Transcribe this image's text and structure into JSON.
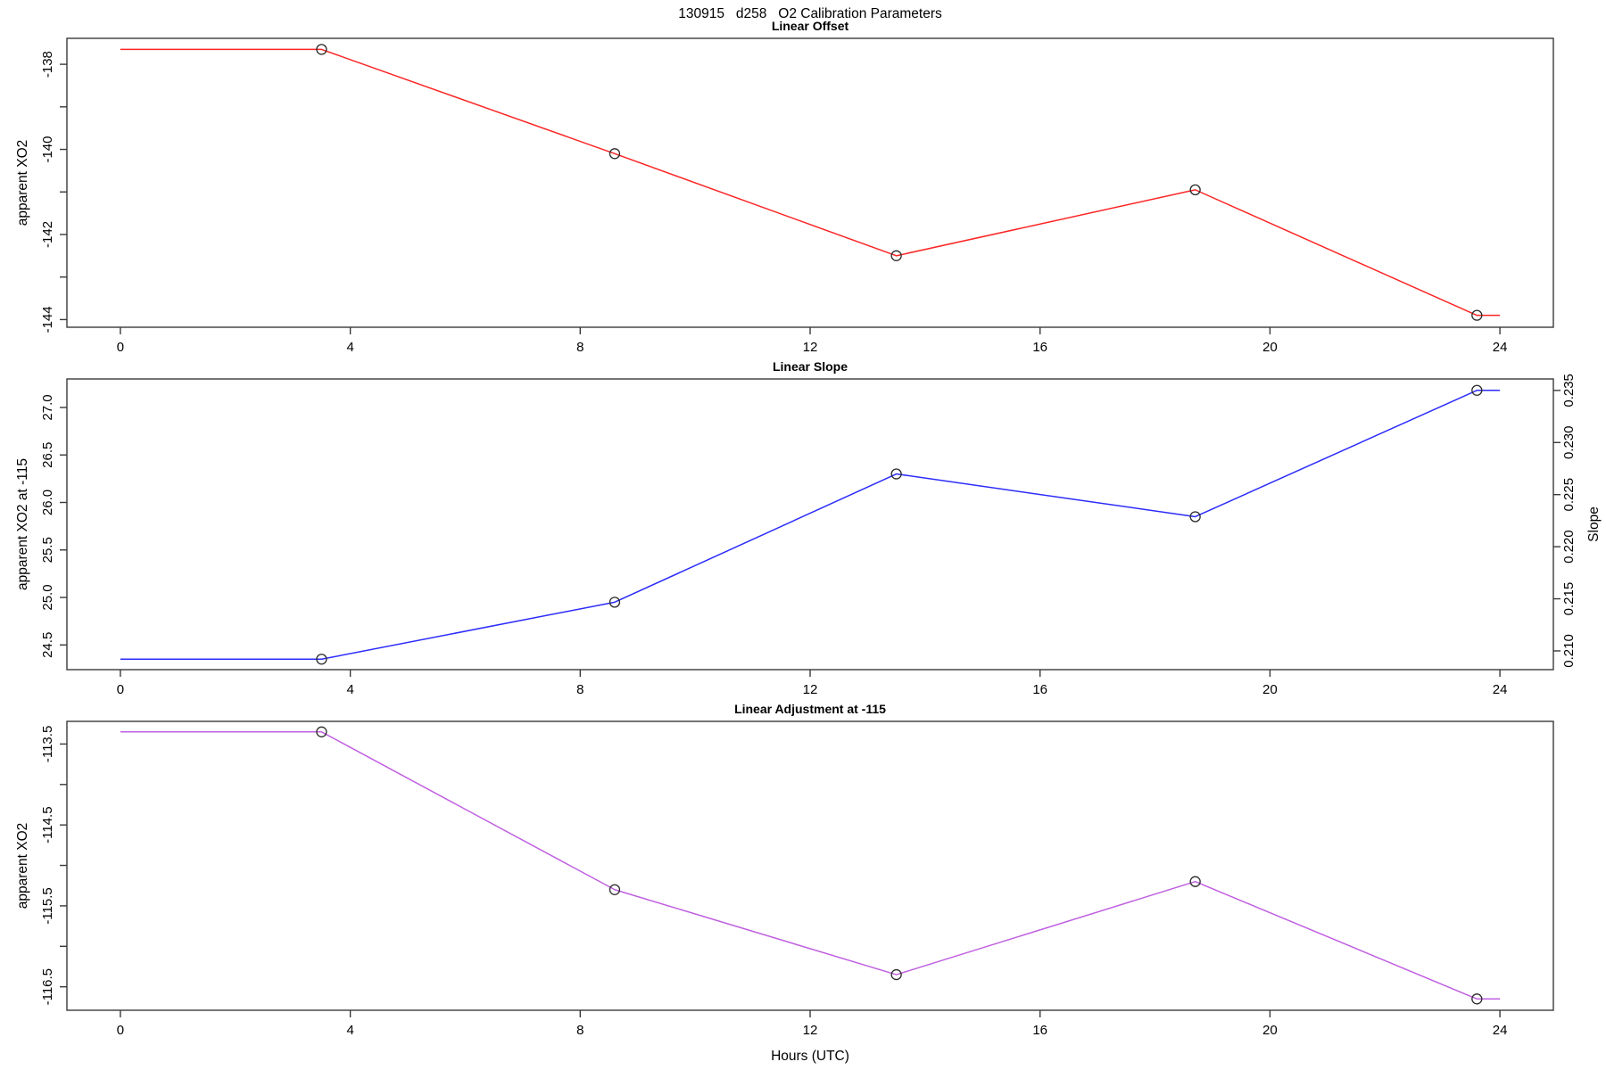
{
  "figure": {
    "title": "130915   d258   O2 Calibration Parameters",
    "xlabel": "Hours (UTC)",
    "background": "#ffffff",
    "frame_color": "#3a3a3a",
    "marker_color": "#2a2a2a",
    "text_color": "#000000"
  },
  "chart_data": [
    {
      "type": "line",
      "title": "Linear Offset",
      "ylabel": "apparent XO2",
      "line_color": "#fb2525",
      "marker": "open-circle",
      "x": [
        3.5,
        8.6,
        13.5,
        18.7,
        23.6
      ],
      "y": [
        -137.65,
        -140.1,
        -142.5,
        -140.95,
        -143.9
      ],
      "line_x": [
        0,
        3.5,
        8.6,
        13.5,
        18.7,
        23.6,
        24
      ],
      "line_y": [
        -137.65,
        -137.65,
        -140.1,
        -142.5,
        -140.95,
        -143.9,
        -143.9
      ],
      "xlim": [
        -0.93,
        24.93
      ],
      "ylim": [
        -144.18,
        -137.39
      ],
      "grid": false,
      "xticks": [
        {
          "v": 0,
          "t": "0"
        },
        {
          "v": 4,
          "t": "4"
        },
        {
          "v": 8,
          "t": "8"
        },
        {
          "v": 12,
          "t": "12"
        },
        {
          "v": 16,
          "t": "16"
        },
        {
          "v": 20,
          "t": "20"
        },
        {
          "v": 24,
          "t": "24"
        }
      ],
      "yticks": [
        {
          "v": -138,
          "t": "-138"
        },
        {
          "v": -139,
          "t": ""
        },
        {
          "v": -140,
          "t": "-140"
        },
        {
          "v": -141,
          "t": ""
        },
        {
          "v": -142,
          "t": "-142"
        },
        {
          "v": -143,
          "t": ""
        },
        {
          "v": -144,
          "t": "-144"
        }
      ]
    },
    {
      "type": "line",
      "title": "Linear Slope",
      "ylabel": "apparent XO2 at -115",
      "line_color": "#2b2bfb",
      "marker": "open-circle",
      "x": [
        3.5,
        8.6,
        13.5,
        18.7,
        23.6
      ],
      "y": [
        24.35,
        24.95,
        26.3,
        25.85,
        27.18
      ],
      "line_x": [
        0,
        3.5,
        8.6,
        13.5,
        18.7,
        23.6,
        24
      ],
      "line_y": [
        24.35,
        24.35,
        24.95,
        26.3,
        25.85,
        27.18,
        27.18
      ],
      "xlim": [
        -0.93,
        24.93
      ],
      "ylim": [
        24.24,
        27.3
      ],
      "grid": false,
      "xticks": [
        {
          "v": 0,
          "t": "0"
        },
        {
          "v": 4,
          "t": "4"
        },
        {
          "v": 8,
          "t": "8"
        },
        {
          "v": 12,
          "t": "12"
        },
        {
          "v": 16,
          "t": "16"
        },
        {
          "v": 20,
          "t": "20"
        },
        {
          "v": 24,
          "t": "24"
        }
      ],
      "yticks": [
        {
          "v": 24.5,
          "t": "24.5"
        },
        {
          "v": 25.0,
          "t": "25.0"
        },
        {
          "v": 25.5,
          "t": "25.5"
        },
        {
          "v": 26.0,
          "t": "26.0"
        },
        {
          "v": 26.5,
          "t": "26.5"
        },
        {
          "v": 27.0,
          "t": "27.0"
        }
      ],
      "right_axis": {
        "label": "Slope",
        "ylim": [
          0.2082,
          0.2361
        ],
        "values": [
          0.209,
          0.215,
          0.227,
          0.223,
          0.235
        ],
        "ticks": [
          {
            "v": 0.21,
            "t": "0.210"
          },
          {
            "v": 0.215,
            "t": "0.215"
          },
          {
            "v": 0.22,
            "t": "0.220"
          },
          {
            "v": 0.225,
            "t": "0.225"
          },
          {
            "v": 0.23,
            "t": "0.230"
          },
          {
            "v": 0.235,
            "t": "0.235"
          }
        ]
      }
    },
    {
      "type": "line",
      "title": "Linear Adjustment at -115",
      "ylabel": "apparent XO2",
      "line_color": "#c060e0",
      "marker": "open-circle",
      "x": [
        3.5,
        8.6,
        13.5,
        18.7,
        23.6
      ],
      "y": [
        -113.35,
        -115.3,
        -116.35,
        -115.2,
        -116.65
      ],
      "line_x": [
        0,
        3.5,
        8.6,
        13.5,
        18.7,
        23.6,
        24
      ],
      "line_y": [
        -113.35,
        -113.35,
        -115.3,
        -116.35,
        -115.2,
        -116.65,
        -116.65
      ],
      "xlim": [
        -0.93,
        24.93
      ],
      "ylim": [
        -116.79,
        -113.22
      ],
      "grid": false,
      "xticks": [
        {
          "v": 0,
          "t": "0"
        },
        {
          "v": 4,
          "t": "4"
        },
        {
          "v": 8,
          "t": "8"
        },
        {
          "v": 12,
          "t": "12"
        },
        {
          "v": 16,
          "t": "16"
        },
        {
          "v": 20,
          "t": "20"
        },
        {
          "v": 24,
          "t": "24"
        }
      ],
      "yticks": [
        {
          "v": -113.5,
          "t": "-113.5"
        },
        {
          "v": -114.0,
          "t": ""
        },
        {
          "v": -114.5,
          "t": "-114.5"
        },
        {
          "v": -115.0,
          "t": ""
        },
        {
          "v": -115.5,
          "t": "-115.5"
        },
        {
          "v": -116.0,
          "t": ""
        },
        {
          "v": -116.5,
          "t": "-116.5"
        }
      ]
    }
  ]
}
